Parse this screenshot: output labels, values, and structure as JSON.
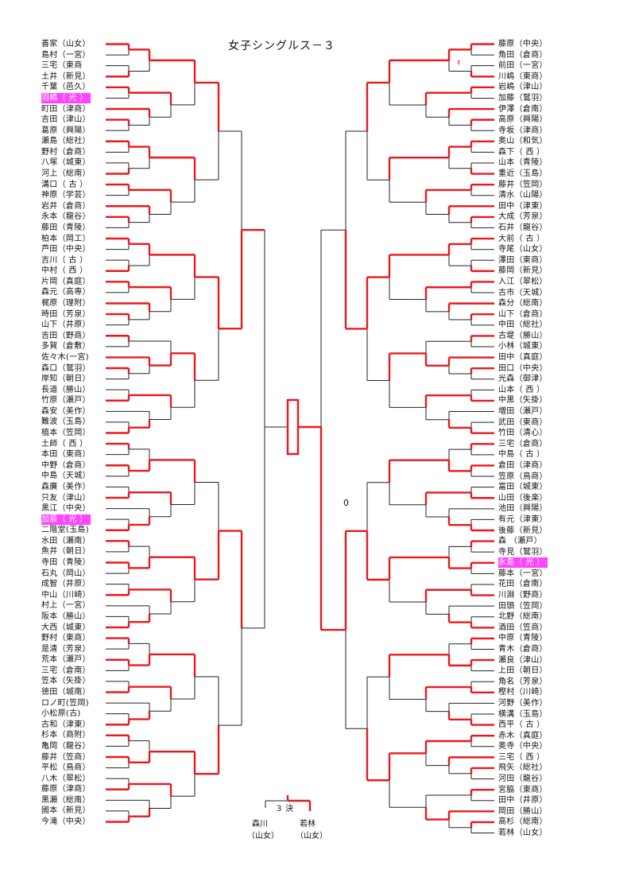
{
  "title": "女子シングルス－３",
  "left_players": [
    "善家（山女）",
    "島村（一宮）",
    "三宅（東商",
    "土井（新見）",
    "千葉（邑久）",
    "羽嶋（ 光 ）",
    "町田（津商）",
    "吉田（津山）",
    "葛原（興陽）",
    "瀬島（総社）",
    "野村（倉商）",
    "八塚（城東）",
    "河上（総南）",
    "溝口（ 古 ）",
    "神原（学芸）",
    "岩井（倉商）",
    "永本（龍谷）",
    "藤田（青陵）",
    "柏本（岡工）",
    "芦田（中央）",
    "吉川（ 古 ）",
    "中村（ 西 ）",
    "片岡（真庭）",
    "森元（高専）",
    "梶原（理附）",
    "時田（芳泉）",
    "山下（井原）",
    "吉田（野商）",
    "多賀（倉敷）",
    "佐々木(一宮)",
    "森口（鷲羽）",
    "岸知（朝日）",
    "長道（勝山）",
    "竹原（瀬戸）",
    "森安（美作）",
    "難波（玉島）",
    "植本（笠岡）",
    "土師（ 西 ）",
    "本田（東商）",
    "中野（倉商）",
    "中島（天城）",
    "森廣（美作）",
    "只友（津山）",
    "黒江（中央）",
    "加辰（ 光 ）",
    "二階堂(玉島)",
    "水田（瀬南）",
    "魚井（朝日）",
    "寺田（青陵）",
    "石丸（岡山）",
    "成智（井原）",
    "中山（川崎）",
    "村上（一宮）",
    "阪本（勝山）",
    "大西（城東）",
    "野村（東商）",
    "是清（芳泉）",
    "荒本（瀬戸）",
    "三宅（倉南）",
    "笠本（矢掛）",
    "徳田（城南）",
    "ロノ町(笠岡)",
    "小松原(古)",
    "古和（津東）",
    "杉本（商附）",
    "亀岡（龍谷）",
    "藤井（笠商）",
    "平松（鳥商）",
    "八木（翠松）",
    "藤原（津商）",
    "黒瀬（総南）",
    "國本（新見）",
    "今滝（中央）"
  ],
  "right_players": [
    "藤原（中央）",
    "角田（倉商）",
    "前田（一宮）",
    "川嶋（東商）",
    "岩嶋（津山）",
    "加藤（鷲羽）",
    "伊澤（倉南）",
    "高原（興陽）",
    "寺坂（津商）",
    "奥山（和気）",
    "森下（ 西 ）",
    "山本（青陵）",
    "重近（玉島）",
    "藤井（笠岡）",
    "清水（山陽）",
    "田中（津東）",
    "大成（芳泉）",
    "石井（龍谷）",
    "大前（ 古 ）",
    "寺尾（山女）",
    "澤田（東商）",
    "藤岡（新見）",
    "入江（翠松）",
    "古市（天城）",
    "森分（総南）",
    "山下（倉商）",
    "中田（総社）",
    "古堤（勝山）",
    "小林（城東）",
    "田中（真庭）",
    "田口（中央）",
    "光森（御津）",
    "山本（ 西 ）",
    "中黒（矢掛）",
    "増田（瀬戸）",
    "武田（東商）",
    "竹田（清心）",
    "三宅（倉商）",
    "中島（ 古 ）",
    "倉田（津商）",
    "笠原（鳥商）",
    "富田（城東）",
    "山田（後楽）",
    "池田（興陽）",
    "有元（津東）",
    "後藤（新見）",
    "森 （瀬戸）",
    "寺見（鷲羽）",
    "氷島（ 光 ）",
    "藤本（一宮）",
    "花田（倉南）",
    "川淵（野商）",
    "田頭（笠岡）",
    "北野（総南）",
    "酒田（笠商）",
    "中原（青陵）",
    "青木（倉商）",
    "瀬良（津山）",
    "上田（朝日）",
    "角名（芳泉）",
    "樫村（川崎）",
    "河野（美作）",
    "横溝（玉島）",
    "西平（ 古 ）",
    "赤木（真庭）",
    "奥寺（中央）",
    "三宅（ 西 ）",
    "飛矢（総社）",
    "河田（龍谷）",
    "宮脇（東商）",
    "田中（井原）",
    "岡田（勝山）",
    "高杉（総南）",
    "若林（山女）"
  ],
  "highlighted": [
    "羽嶋（ 光 ）",
    "加辰（ 光 ）",
    "氷島（ 光 ）"
  ],
  "third_place": {
    "label": "３ 決",
    "left_name": "森川",
    "left_school": "（山女）",
    "right_name": "若林",
    "right_school": "（山女）"
  },
  "score_mark": "0",
  "small_mark": "ｷ",
  "colors": {
    "winner_line": "#e8191e",
    "plain_line": "#222222",
    "highlight_bg": "#ff44ff"
  }
}
